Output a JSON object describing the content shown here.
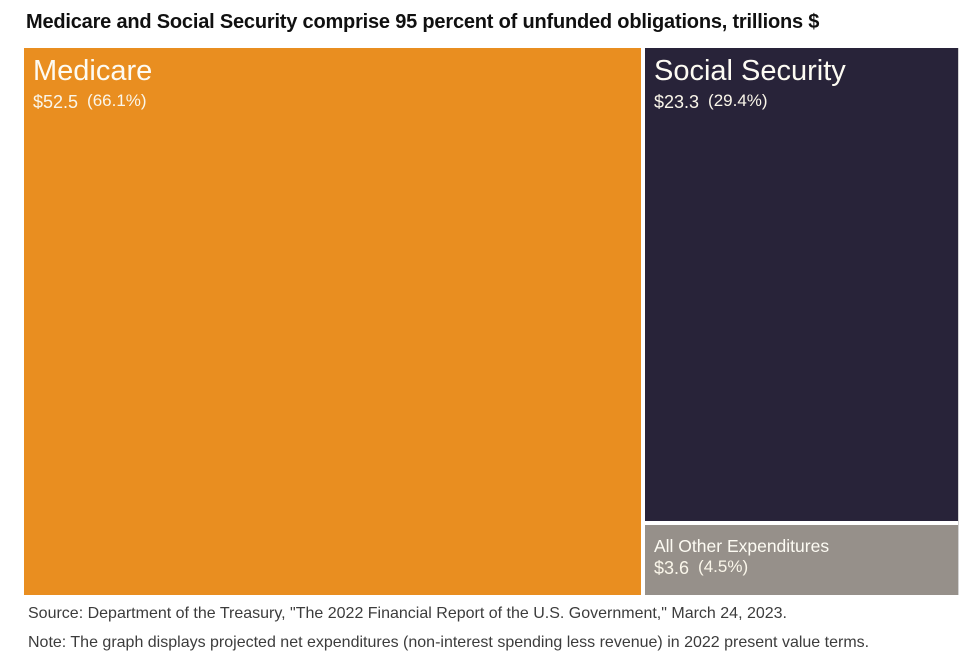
{
  "title": "Medicare and Social Security comprise 95 percent of unfunded obligations, trillions $",
  "chart_data": {
    "type": "treemap",
    "title": "Medicare and Social Security comprise 95 percent of unfunded obligations, trillions $",
    "units": "trillions $",
    "legend_position": "none",
    "layout_hint": "Medicare fills full-height left column (66.1% of area); Social Security occupies upper right; All Other Expenditures is a short band at bottom right; thin white gutters between blocks",
    "items": [
      {
        "label": "Medicare",
        "value_label": "$52.5",
        "value": 52.5,
        "percent_label": "(66.1%)",
        "percent": 66.1,
        "color": "#E98E20",
        "text_color": "#FDFBF3"
      },
      {
        "label": "Social Security",
        "value_label": "$23.3",
        "value": 23.3,
        "percent_label": "(29.4%)",
        "percent": 29.4,
        "color": "#282339",
        "text_color": "#FDFBF3"
      },
      {
        "label": "All Other Expenditures",
        "value_label": "$3.6",
        "value": 3.6,
        "percent_label": "(4.5%)",
        "percent": 4.5,
        "color": "#96908A",
        "text_color": "#FDFBF3"
      }
    ]
  },
  "footer": {
    "source": "Source: Department of the Treasury, \"The 2022 Financial Report of the U.S. Government,\" March 24, 2023.",
    "note": "Note: The graph displays projected net expenditures (non-interest spending less revenue) in 2022 present value terms."
  }
}
